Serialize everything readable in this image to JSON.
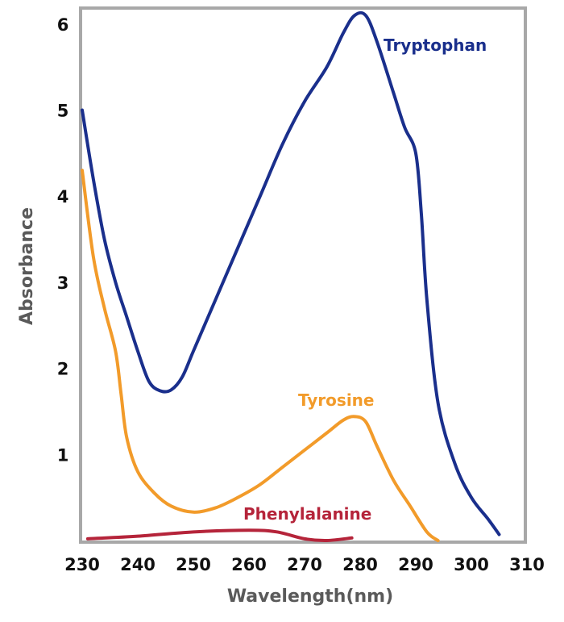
{
  "chart_data": {
    "type": "line",
    "xlabel": "Wavelength(nm)",
    "ylabel": "Absorbance",
    "xlim": [
      230,
      310
    ],
    "ylim": [
      0,
      6.2
    ],
    "xticks": [
      230,
      240,
      250,
      260,
      270,
      280,
      290,
      300,
      310
    ],
    "yticks": [
      1,
      2,
      3,
      4,
      5,
      6
    ],
    "grid": false,
    "legend": "inline labels",
    "series": [
      {
        "name": "Tryptophan",
        "color": "#1a2f8c",
        "x": [
          230,
          232,
          234,
          236,
          238,
          240,
          242,
          244,
          246,
          248,
          250,
          254,
          258,
          262,
          266,
          270,
          274,
          277,
          279,
          281,
          283,
          286,
          288,
          290,
          291,
          292,
          294,
          297,
          300,
          303,
          305
        ],
        "y": [
          5.0,
          4.2,
          3.5,
          3.0,
          2.6,
          2.2,
          1.85,
          1.74,
          1.75,
          1.9,
          2.2,
          2.8,
          3.4,
          4.0,
          4.6,
          5.1,
          5.5,
          5.9,
          6.1,
          6.1,
          5.8,
          5.2,
          4.8,
          4.5,
          3.8,
          2.8,
          1.6,
          0.9,
          0.5,
          0.25,
          0.07
        ]
      },
      {
        "name": "Tyrosine",
        "color": "#f29b2a",
        "x": [
          230,
          232,
          234,
          236,
          237,
          238,
          240,
          243,
          246,
          250,
          254,
          258,
          262,
          266,
          270,
          274,
          277,
          279,
          281,
          283,
          286,
          289,
          292,
          294
        ],
        "y": [
          4.3,
          3.3,
          2.7,
          2.2,
          1.7,
          1.2,
          0.8,
          0.55,
          0.4,
          0.33,
          0.38,
          0.5,
          0.65,
          0.85,
          1.05,
          1.25,
          1.4,
          1.44,
          1.38,
          1.1,
          0.7,
          0.4,
          0.1,
          0.0
        ]
      },
      {
        "name": "Phenylalanine",
        "color": "#b5243a",
        "x": [
          231,
          240,
          250,
          260,
          265,
          270,
          274,
          278.5
        ],
        "y": [
          0.02,
          0.05,
          0.1,
          0.12,
          0.1,
          0.02,
          0.0,
          0.03
        ]
      }
    ]
  }
}
